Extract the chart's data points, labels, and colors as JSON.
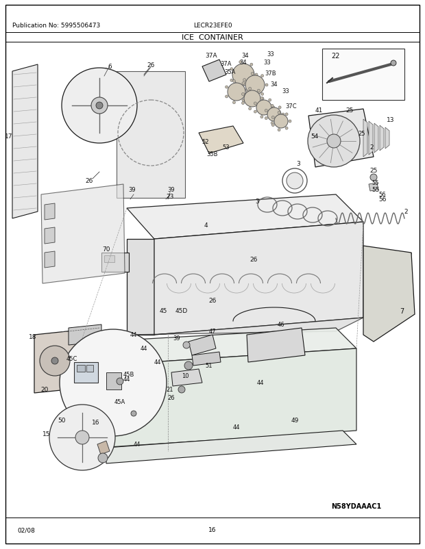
{
  "title": "ICE  CONTAINER",
  "pub_no": "Publication No: 5995506473",
  "model": "LECR23EFE0",
  "diagram_id": "N58YDAAAC1",
  "date": "02/08",
  "page": "16",
  "bg_color": "#ffffff",
  "border_color": "#000000",
  "text_color": "#000000",
  "fig_width": 6.2,
  "fig_height": 8.03,
  "dpi": 100
}
